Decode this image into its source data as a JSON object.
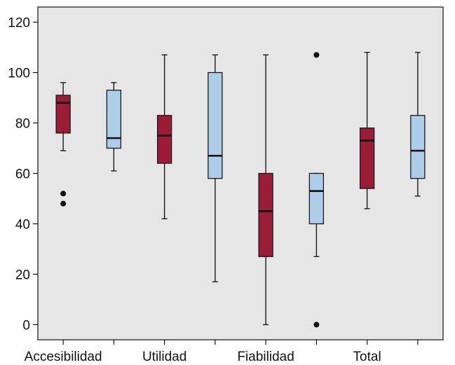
{
  "chart_data": {
    "type": "box",
    "title": "",
    "xlabel": "",
    "ylabel": "",
    "categories": [
      "Accesibilidad",
      "Utilidad",
      "Fiabilidad",
      "Total"
    ],
    "ylim": [
      -6,
      126
    ],
    "yticks": [
      0,
      20,
      40,
      60,
      80,
      100,
      120
    ],
    "grid": false,
    "background_color": "#e6e6e6",
    "series_colors": [
      "#9b1c37",
      "#aecde9"
    ],
    "boxes": [
      {
        "category": "Accesibilidad",
        "series_index": 0,
        "min": 69,
        "q1": 76,
        "median": 88,
        "q3": 91,
        "max": 96,
        "outliers": [
          52,
          48
        ]
      },
      {
        "category": "Accesibilidad",
        "series_index": 1,
        "min": 61,
        "q1": 70,
        "median": 74,
        "q3": 93,
        "max": 96,
        "outliers": []
      },
      {
        "category": "Utilidad",
        "series_index": 0,
        "min": 42,
        "q1": 64,
        "median": 75,
        "q3": 83,
        "max": 107,
        "outliers": []
      },
      {
        "category": "Utilidad",
        "series_index": 1,
        "min": 17,
        "q1": 58,
        "median": 67,
        "q3": 100,
        "max": 107,
        "outliers": []
      },
      {
        "category": "Fiabilidad",
        "series_index": 0,
        "min": 0,
        "q1": 27,
        "median": 45,
        "q3": 60,
        "max": 107,
        "outliers": []
      },
      {
        "category": "Fiabilidad",
        "series_index": 1,
        "min": 27,
        "q1": 40,
        "median": 53,
        "q3": 60,
        "max": 60,
        "outliers": [
          107,
          0
        ]
      },
      {
        "category": "Total",
        "series_index": 0,
        "min": 46,
        "q1": 54,
        "median": 73,
        "q3": 78,
        "max": 108,
        "outliers": []
      },
      {
        "category": "Total",
        "series_index": 1,
        "min": 51,
        "q1": 58,
        "median": 69,
        "q3": 83,
        "max": 108,
        "outliers": []
      }
    ]
  }
}
